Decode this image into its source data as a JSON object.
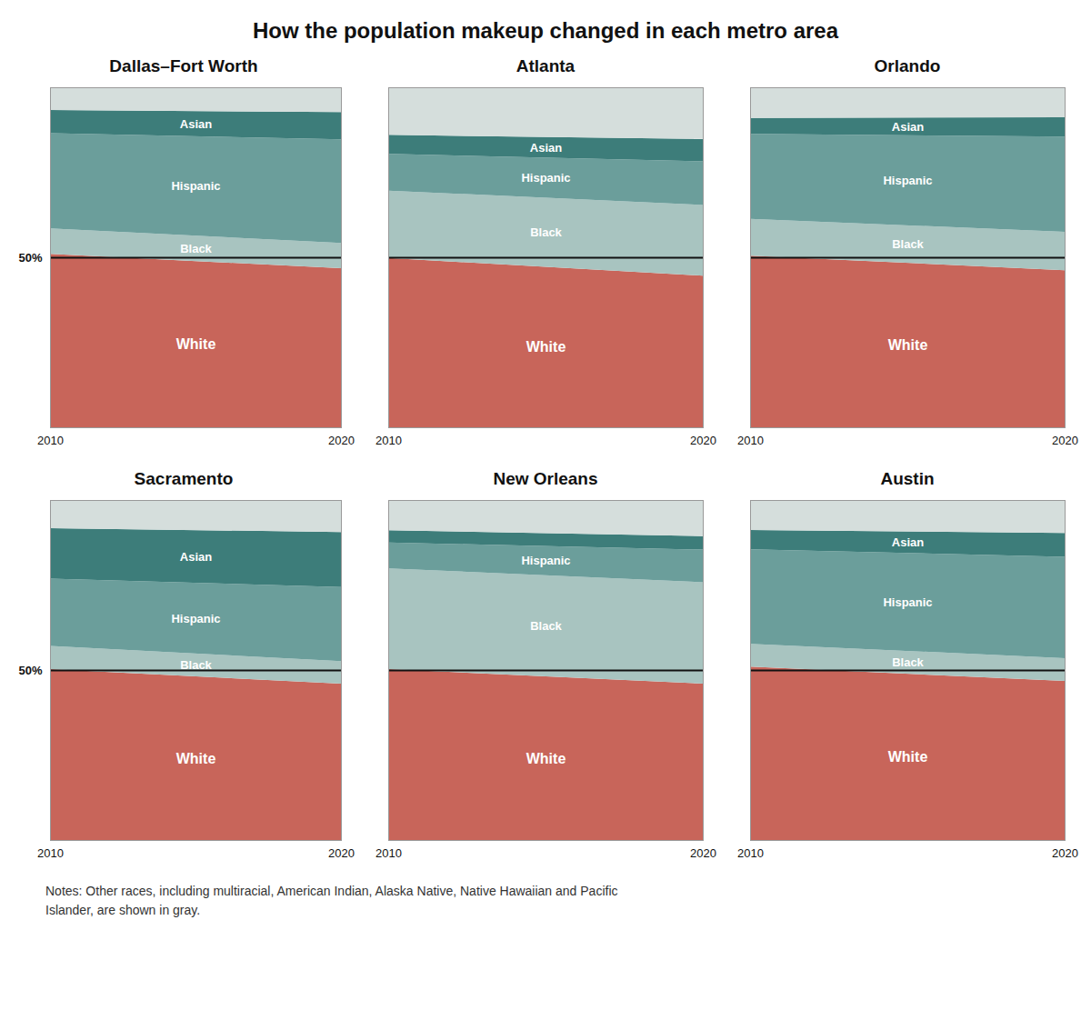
{
  "title": "How the population makeup changed in each metro area",
  "annotations": [
    "Notes: Other races, including multiracial, American Indian, Alaska Native, Native Hawaiian and Pacific\nIslander, are shown in gray."
  ],
  "chart_data": [
    {
      "type": "area",
      "title": "Dallas–Fort Worth",
      "x": [
        2010,
        2020
      ],
      "xlim": [
        2010,
        2020
      ],
      "xticks": [
        2010,
        2020
      ],
      "ylim": [
        0,
        1
      ],
      "yticks": [
        {
          "value": 0.5,
          "label": "50%"
        }
      ],
      "grid": true,
      "stacked": true,
      "series": [
        {
          "name": "White",
          "color": "#c8655a",
          "values": [
            0.51,
            0.468
          ]
        },
        {
          "name": "Black",
          "color": "#a8c4c0",
          "values": [
            0.075,
            0.074
          ]
        },
        {
          "name": "Hispanic",
          "color": "#6b9e9b",
          "values": [
            0.28,
            0.305
          ]
        },
        {
          "name": "Asian",
          "color": "#3d7d7a",
          "values": [
            0.068,
            0.08
          ]
        },
        {
          "name": "Other",
          "color": "#d5dedc",
          "values": [
            0.067,
            0.073
          ]
        }
      ],
      "annotations": [
        "White",
        "Black",
        "Hispanic",
        "Asian"
      ]
    },
    {
      "type": "area",
      "title": "Atlanta",
      "x": [
        2010,
        2020
      ],
      "xlim": [
        2010,
        2020
      ],
      "xticks": [
        2010,
        2020
      ],
      "ylim": [
        0,
        1
      ],
      "yticks": [
        {
          "value": 0.5,
          "label": "50%"
        }
      ],
      "grid": true,
      "stacked": true,
      "tick_labels": "x",
      "series": [
        {
          "name": "White",
          "color": "#c8655a",
          "values": [
            0.498,
            0.446
          ]
        },
        {
          "name": "Black",
          "color": "#a8c4c0",
          "values": [
            0.198,
            0.208
          ]
        },
        {
          "name": "Hispanic",
          "color": "#6b9e9b",
          "values": [
            0.108,
            0.128
          ]
        },
        {
          "name": "Asian",
          "color": "#3d7d7a",
          "values": [
            0.056,
            0.066
          ]
        },
        {
          "name": "Other",
          "color": "#d5dedc",
          "values": [
            0.14,
            0.152
          ]
        }
      ],
      "annotations": [
        "White",
        "Black",
        "Hispanic",
        "Asian"
      ]
    },
    {
      "type": "area",
      "title": "Orlando",
      "x": [
        2010,
        2020
      ],
      "xlim": [
        2010,
        2020
      ],
      "xticks": [
        2010,
        2020
      ],
      "ylim": [
        0,
        1
      ],
      "yticks": [
        {
          "value": 0.5,
          "label": "50%"
        }
      ],
      "grid": true,
      "stacked": true,
      "tick_labels": "x",
      "series": [
        {
          "name": "White",
          "color": "#c8655a",
          "values": [
            0.505,
            0.462
          ]
        },
        {
          "name": "Black",
          "color": "#a8c4c0",
          "values": [
            0.108,
            0.113
          ]
        },
        {
          "name": "Hispanic",
          "color": "#6b9e9b",
          "values": [
            0.25,
            0.28
          ]
        },
        {
          "name": "Asian",
          "color": "#3d7d7a",
          "values": [
            0.047,
            0.057
          ]
        },
        {
          "name": "Other",
          "color": "#d5dedc",
          "values": [
            0.09,
            0.088
          ]
        }
      ],
      "annotations": [
        "White",
        "Black",
        "Hispanic",
        "Asian"
      ]
    },
    {
      "type": "area",
      "title": "Sacramento",
      "x": [
        2010,
        2020
      ],
      "xlim": [
        2010,
        2020
      ],
      "xticks": [
        2010,
        2020
      ],
      "ylim": [
        0,
        1
      ],
      "yticks": [
        {
          "value": 0.5,
          "label": "50%"
        }
      ],
      "grid": true,
      "stacked": true,
      "series": [
        {
          "name": "White",
          "color": "#c8655a",
          "values": [
            0.503,
            0.46
          ]
        },
        {
          "name": "Black",
          "color": "#a8c4c0",
          "values": [
            0.068,
            0.066
          ]
        },
        {
          "name": "Hispanic",
          "color": "#6b9e9b",
          "values": [
            0.198,
            0.218
          ]
        },
        {
          "name": "Asian",
          "color": "#3d7d7a",
          "values": [
            0.148,
            0.162
          ]
        },
        {
          "name": "Other",
          "color": "#d5dedc",
          "values": [
            0.083,
            0.094
          ]
        }
      ],
      "annotations": [
        "White",
        "Black",
        "Hispanic",
        "Asian"
      ]
    },
    {
      "type": "area",
      "title": "New Orleans",
      "x": [
        2010,
        2020
      ],
      "xlim": [
        2010,
        2020
      ],
      "xticks": [
        2010,
        2020
      ],
      "ylim": [
        0,
        1
      ],
      "yticks": [
        {
          "value": 0.5,
          "label": "50%"
        }
      ],
      "grid": true,
      "stacked": true,
      "tick_labels": "x",
      "series": [
        {
          "name": "White",
          "color": "#c8655a",
          "values": [
            0.503,
            0.46
          ]
        },
        {
          "name": "Black",
          "color": "#a8c4c0",
          "values": [
            0.296,
            0.298
          ]
        },
        {
          "name": "Hispanic",
          "color": "#6b9e9b",
          "values": [
            0.076,
            0.096
          ]
        },
        {
          "name": "Asian",
          "color": "#3d7d7a",
          "values": [
            0.036,
            0.04
          ]
        },
        {
          "name": "Other",
          "color": "#d5dedc",
          "values": [
            0.089,
            0.106
          ]
        }
      ],
      "annotations": [
        "White",
        "Black",
        "Hispanic"
      ]
    },
    {
      "type": "area",
      "title": "Austin",
      "x": [
        2010,
        2020
      ],
      "xlim": [
        2010,
        2020
      ],
      "xticks": [
        2010,
        2020
      ],
      "ylim": [
        0,
        1
      ],
      "yticks": [
        {
          "value": 0.5,
          "label": "50%"
        }
      ],
      "grid": true,
      "stacked": true,
      "tick_labels": "x",
      "series": [
        {
          "name": "White",
          "color": "#c8655a",
          "values": [
            0.51,
            0.468
          ]
        },
        {
          "name": "Black",
          "color": "#a8c4c0",
          "values": [
            0.067,
            0.067
          ]
        },
        {
          "name": "Hispanic",
          "color": "#6b9e9b",
          "values": [
            0.278,
            0.298
          ]
        },
        {
          "name": "Asian",
          "color": "#3d7d7a",
          "values": [
            0.057,
            0.07
          ]
        },
        {
          "name": "Other",
          "color": "#d5dedc",
          "values": [
            0.088,
            0.097
          ]
        }
      ],
      "annotations": [
        "White",
        "Black",
        "Hispanic",
        "Asian"
      ]
    }
  ]
}
